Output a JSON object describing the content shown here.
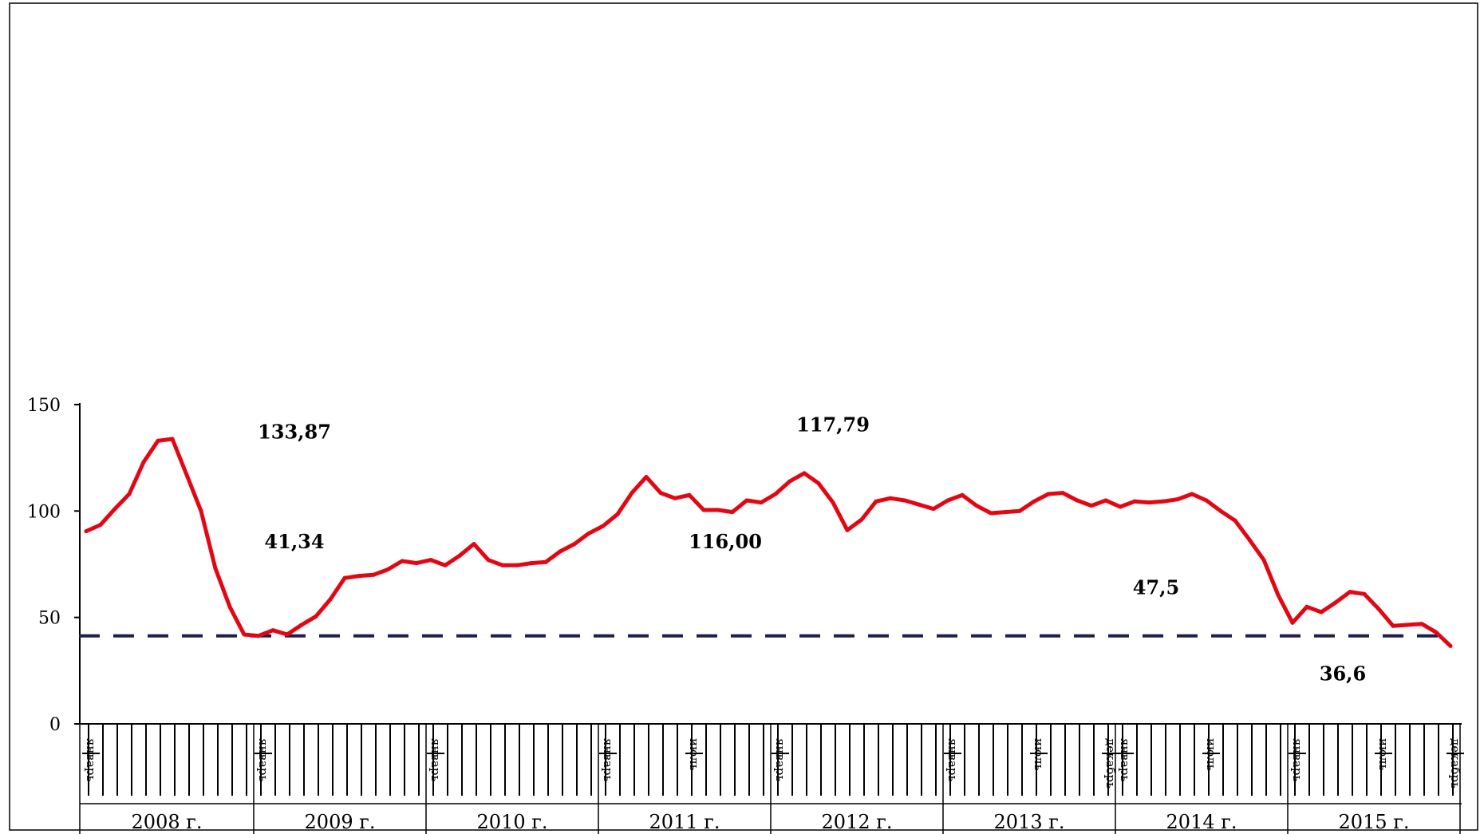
{
  "chart_data": {
    "type": "line",
    "title": "",
    "xlabel": "",
    "ylabel": "",
    "ylim": [
      0,
      150
    ],
    "yticks": [
      0,
      50,
      100,
      150
    ],
    "grid": false,
    "legend": "none",
    "colors": {
      "line": "#e30613",
      "reference": "#1f1f4d",
      "axis": "#000000"
    },
    "year_labels": [
      "2008 г.",
      "2009 г.",
      "2010 г.",
      "2011 г.",
      "2012 г.",
      "2013 г.",
      "2014 г.",
      "2015 г."
    ],
    "month_labels": [
      {
        "m": 0,
        "label": "январь"
      },
      {
        "m": 12,
        "label": "январь"
      },
      {
        "m": 24,
        "label": "январь"
      },
      {
        "m": 36,
        "label": "январь"
      },
      {
        "m": 42,
        "label": "июль"
      },
      {
        "m": 48,
        "label": "январь"
      },
      {
        "m": 60,
        "label": "январь"
      },
      {
        "m": 66,
        "label": "июль"
      },
      {
        "m": 71,
        "label": "декабрь"
      },
      {
        "m": 72,
        "label": "январь"
      },
      {
        "m": 78,
        "label": "июль"
      },
      {
        "m": 84,
        "label": "январь"
      },
      {
        "m": 90,
        "label": "июль"
      },
      {
        "m": 95,
        "label": "декабрь"
      }
    ],
    "reference_line": {
      "value": 41.34
    },
    "annotations": [
      {
        "text": "133,87",
        "m": 14.5,
        "y": 134
      },
      {
        "text": "41,34",
        "m": 14.5,
        "y": 82.5
      },
      {
        "text": "117,79",
        "m": 52,
        "y": 137.5
      },
      {
        "text": "116,00",
        "m": 44.5,
        "y": 82.5
      },
      {
        "text": "47,5",
        "m": 74.5,
        "y": 61
      },
      {
        "text": "36,6",
        "m": 87.5,
        "y": 20.5
      }
    ],
    "series": [
      {
        "points": [
          [
            0,
            90.5
          ],
          [
            1,
            93.5
          ],
          [
            2,
            101
          ],
          [
            3,
            108
          ],
          [
            4,
            123
          ],
          [
            5,
            133
          ],
          [
            6,
            133.87
          ],
          [
            7,
            117
          ],
          [
            8,
            100
          ],
          [
            9,
            73
          ],
          [
            10,
            55
          ],
          [
            11,
            42
          ],
          [
            12,
            41.34
          ],
          [
            13,
            44
          ],
          [
            14,
            42
          ],
          [
            15,
            46.5
          ],
          [
            16,
            50.5
          ],
          [
            17,
            58.5
          ],
          [
            18,
            68.5
          ],
          [
            19,
            69.5
          ],
          [
            20,
            70
          ],
          [
            21,
            72.5
          ],
          [
            22,
            76.5
          ],
          [
            23,
            75.5
          ],
          [
            24,
            77
          ],
          [
            25,
            74.5
          ],
          [
            26,
            79
          ],
          [
            27,
            84.5
          ],
          [
            28,
            77
          ],
          [
            29,
            74.5
          ],
          [
            30,
            74.5
          ],
          [
            31,
            75.5
          ],
          [
            32,
            76
          ],
          [
            33,
            81
          ],
          [
            34,
            84.5
          ],
          [
            35,
            89.5
          ],
          [
            36,
            93
          ],
          [
            37,
            98.5
          ],
          [
            38,
            108.5
          ],
          [
            39,
            116
          ],
          [
            40,
            108.5
          ],
          [
            41,
            106
          ],
          [
            42,
            107.5
          ],
          [
            43,
            100.5
          ],
          [
            44,
            100.5
          ],
          [
            45,
            99.5
          ],
          [
            46,
            105
          ],
          [
            47,
            104
          ],
          [
            48,
            108
          ],
          [
            49,
            114
          ],
          [
            50,
            117.79
          ],
          [
            51,
            113
          ],
          [
            52,
            104
          ],
          [
            53,
            91
          ],
          [
            54,
            96
          ],
          [
            55,
            104.5
          ],
          [
            56,
            106
          ],
          [
            57,
            105
          ],
          [
            58,
            103
          ],
          [
            59,
            101
          ],
          [
            60,
            105
          ],
          [
            61,
            107.5
          ],
          [
            62,
            102.5
          ],
          [
            63,
            99
          ],
          [
            64,
            99.5
          ],
          [
            65,
            100
          ],
          [
            66,
            104.5
          ],
          [
            67,
            108
          ],
          [
            68,
            108.5
          ],
          [
            69,
            105
          ],
          [
            70,
            102.5
          ],
          [
            71,
            105
          ],
          [
            72,
            102
          ],
          [
            73,
            104.5
          ],
          [
            74,
            104
          ],
          [
            75,
            104.5
          ],
          [
            76,
            105.5
          ],
          [
            77,
            108
          ],
          [
            78,
            105
          ],
          [
            79,
            100
          ],
          [
            80,
            95.5
          ],
          [
            81,
            86.5
          ],
          [
            82,
            77
          ],
          [
            83,
            60.5
          ],
          [
            84,
            47.5
          ],
          [
            85,
            55
          ],
          [
            86,
            52.5
          ],
          [
            87,
            57
          ],
          [
            88,
            62
          ],
          [
            89,
            61
          ],
          [
            90,
            54
          ],
          [
            91,
            46
          ],
          [
            92,
            46.5
          ],
          [
            93,
            47
          ],
          [
            94,
            43
          ],
          [
            95,
            36.6
          ]
        ]
      }
    ]
  }
}
